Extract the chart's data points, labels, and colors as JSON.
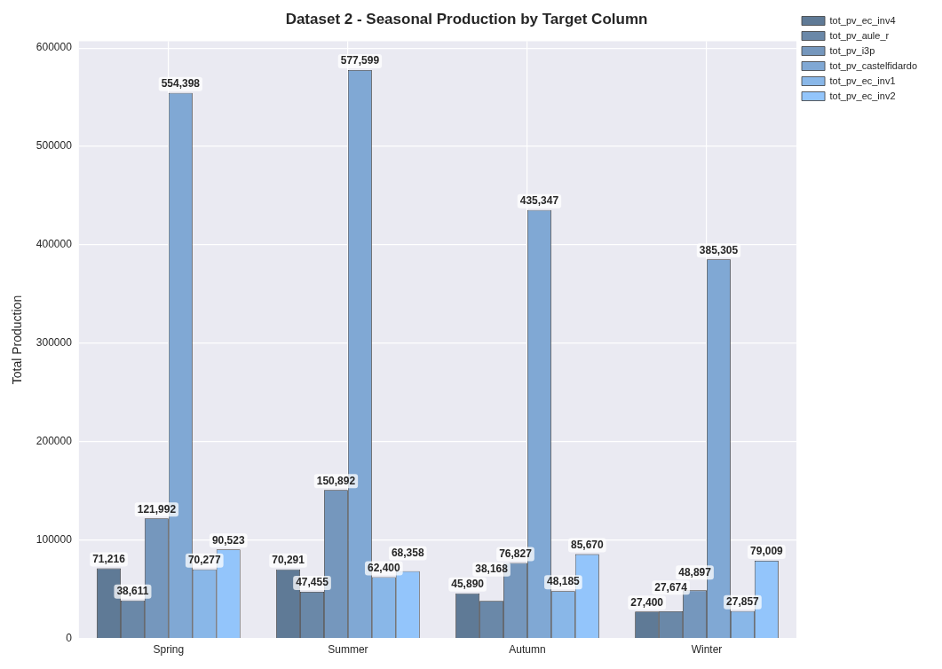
{
  "chart_data": {
    "type": "bar",
    "title": "Dataset 2 - Seasonal Production by Target Column",
    "ylabel": "Total Production",
    "categories": [
      "Spring",
      "Summer",
      "Autumn",
      "Winter"
    ],
    "series": [
      {
        "name": "tot_pv_ec_inv4",
        "color": "#5f7a96",
        "values": [
          71216,
          70291,
          45890,
          27400
        ],
        "value_labels": [
          "71,216",
          "70,291",
          "45,890",
          "27,400"
        ]
      },
      {
        "name": "tot_pv_aule_r",
        "color": "#6a88a8",
        "values": [
          38611,
          47455,
          38168,
          27674
        ],
        "value_labels": [
          "38,611",
          "47,455",
          "38,168",
          "27,674"
        ]
      },
      {
        "name": "tot_pv_i3p",
        "color": "#7597bd",
        "values": [
          121992,
          150892,
          76827,
          48897
        ],
        "value_labels": [
          "121,992",
          "150,892",
          "76,827",
          "48,897"
        ]
      },
      {
        "name": "tot_pv_castelfidardo",
        "color": "#80a8d4",
        "values": [
          554398,
          577599,
          435347,
          385305
        ],
        "value_labels": [
          "554,398",
          "577,599",
          "435,347",
          "385,305"
        ]
      },
      {
        "name": "tot_pv_ec_inv1",
        "color": "#89b7e8",
        "values": [
          70277,
          62400,
          48185,
          27857
        ],
        "value_labels": [
          "70,277",
          "62,400",
          "48,185",
          "27,857"
        ]
      },
      {
        "name": "tot_pv_ec_inv2",
        "color": "#93c5fb",
        "values": [
          90523,
          68358,
          85670,
          79009
        ],
        "value_labels": [
          "90,523",
          "68,358",
          "85,670",
          "79,009"
        ]
      }
    ],
    "ylim": [
      0,
      607000
    ],
    "yticks": [
      0,
      100000,
      200000,
      300000,
      400000,
      500000,
      600000
    ],
    "grid": true,
    "legend": "top right"
  }
}
